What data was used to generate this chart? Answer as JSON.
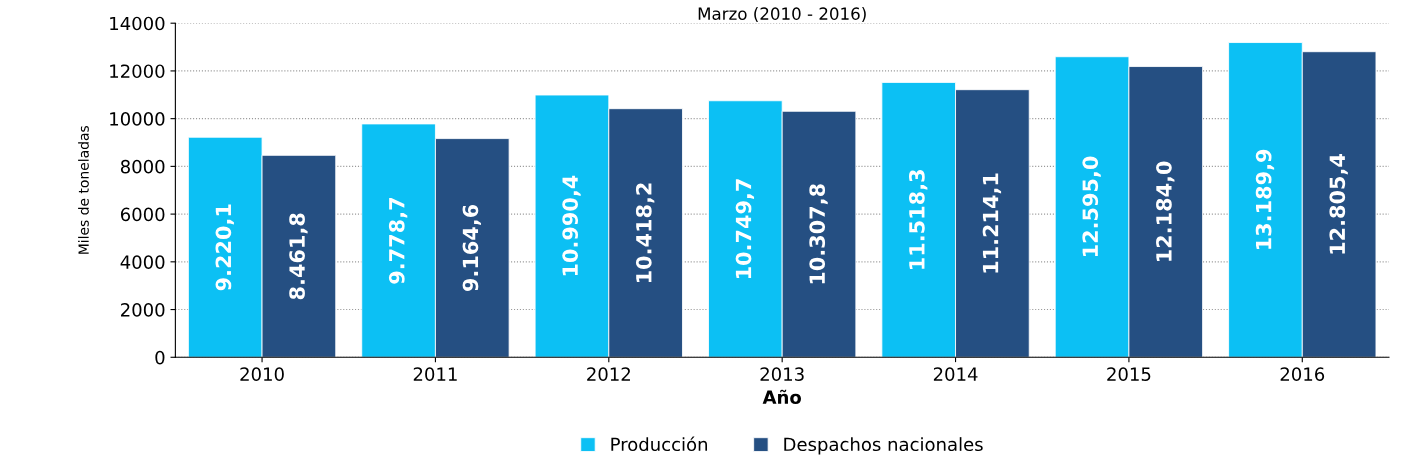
{
  "chart_data": {
    "type": "bar",
    "title": "Marzo (2010 - 2016)",
    "xlabel": "Año",
    "ylabel": "Miles de toneladas",
    "categories": [
      "2010",
      "2011",
      "2012",
      "2013",
      "2014",
      "2015",
      "2016"
    ],
    "series": [
      {
        "name": "Producción",
        "color": "#0cc0f4",
        "values": [
          9220.1,
          9778.7,
          10990.4,
          10749.7,
          11518.3,
          12595.0,
          13189.9
        ],
        "value_labels": [
          "9.220,1",
          "9.778,7",
          "10.990,4",
          "10.749,7",
          "11.518,3",
          "12.595,0",
          "13.189,9"
        ]
      },
      {
        "name": "Despachos nacionales",
        "color": "#254f82",
        "values": [
          8461.8,
          9164.6,
          10418.2,
          10307.8,
          11214.1,
          12184.0,
          12805.4
        ],
        "value_labels": [
          "8.461,8",
          "9.164,6",
          "10.418,2",
          "10.307,8",
          "11.214,1",
          "12.184,0",
          "12.805,4"
        ]
      }
    ],
    "ylim": [
      0,
      14000
    ],
    "yticks": [
      0,
      2000,
      4000,
      6000,
      8000,
      10000,
      12000,
      14000
    ],
    "grid": "y",
    "legend": "bottom"
  }
}
